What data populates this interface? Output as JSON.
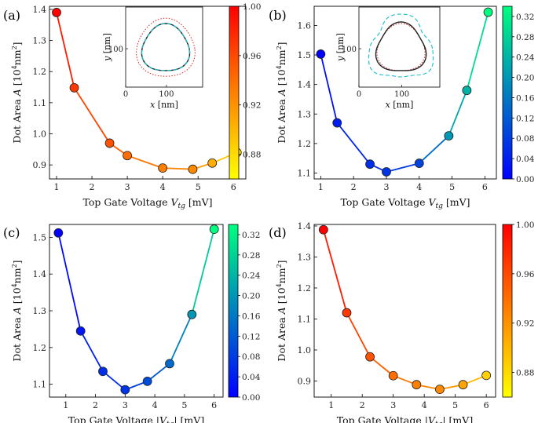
{
  "chart_data": [
    {
      "type": "line",
      "panel": "(a)",
      "xlabel": "Top Gate Voltage V_tg [mV]",
      "xlabel_parts": {
        "pre": "Top Gate Voltage ",
        "var": "V",
        "sub": "tg",
        "post": " [mV]"
      },
      "ylabel": "Dot Area A [10^4 nm^2]",
      "xlim": [
        0.8,
        6.35
      ],
      "ylim": [
        0.855,
        1.41
      ],
      "xticks": [
        1,
        2,
        3,
        4,
        5,
        6
      ],
      "yticks": [
        0.9,
        1.0,
        1.1,
        1.2,
        1.3,
        1.4
      ],
      "x": [
        1.0,
        1.5,
        2.5,
        3.0,
        4.0,
        4.85,
        5.4,
        6.1
      ],
      "y": [
        1.39,
        1.148,
        0.97,
        0.93,
        0.89,
        0.886,
        0.906,
        0.94
      ],
      "color_values": [
        1.0,
        0.97,
        0.955,
        0.94,
        0.93,
        0.925,
        0.905,
        0.875
      ],
      "colormap": "autumn",
      "colorbar": {
        "min": 0.86,
        "max": 1.0,
        "ticks": [
          0.88,
          0.92,
          0.96,
          1.0
        ],
        "labels": [
          "0.88",
          "0.92",
          "0.96",
          "1.00"
        ]
      },
      "inset": {
        "xlabel": "x [nm]",
        "ylabel": "y [nm]",
        "xticks": [
          0,
          100
        ],
        "yticks": [
          100
        ],
        "curves": [
          "black solid",
          "teal dashed",
          "red dotted"
        ]
      }
    },
    {
      "type": "line",
      "panel": "(b)",
      "xlabel": "Top Gate Voltage V_tg [mV]",
      "xlabel_parts": {
        "pre": "Top Gate Voltage ",
        "var": "V",
        "sub": "tg",
        "post": " [mV]"
      },
      "ylabel": "Dot Area A [10^4 nm^2]",
      "xlim": [
        0.8,
        6.35
      ],
      "ylim": [
        1.08,
        1.665
      ],
      "xticks": [
        1,
        2,
        3,
        4,
        5,
        6
      ],
      "yticks": [
        1.1,
        1.2,
        1.3,
        1.4,
        1.5,
        1.6
      ],
      "x": [
        1.0,
        1.5,
        2.5,
        3.0,
        4.0,
        4.9,
        5.45,
        6.1
      ],
      "y": [
        1.503,
        1.27,
        1.13,
        1.104,
        1.133,
        1.226,
        1.38,
        1.645
      ],
      "color_values": [
        0.0,
        0.04,
        0.06,
        0.07,
        0.09,
        0.2,
        0.24,
        0.34
      ],
      "colormap": "winter",
      "colorbar": {
        "min": 0.0,
        "max": 0.34,
        "ticks": [
          0.0,
          0.04,
          0.08,
          0.12,
          0.16,
          0.2,
          0.24,
          0.28,
          0.32
        ],
        "labels": [
          "0.00",
          "0.04",
          "0.08",
          "0.12",
          "0.16",
          "0.20",
          "0.24",
          "0.28",
          "0.32"
        ]
      },
      "inset": {
        "xlabel": "x [nm]",
        "ylabel": "y [nm]",
        "xticks": [
          0,
          100
        ],
        "yticks": [
          100
        ],
        "curves": [
          "black solid",
          "teal dashed",
          "red dotted"
        ]
      }
    },
    {
      "type": "line",
      "panel": "(c)",
      "xlabel": "Top Gate Voltage |V_tg| [mV]",
      "xlabel_parts": {
        "pre": "Top Gate Voltage |",
        "var": "V",
        "sub": "tg",
        "post": "| [mV]"
      },
      "ylabel": "Dot Area A [10^4 nm^2]",
      "xlim": [
        0.45,
        6.3
      ],
      "ylim": [
        1.065,
        1.535
      ],
      "xticks": [
        1,
        2,
        3,
        4,
        5,
        6
      ],
      "yticks": [
        1.1,
        1.2,
        1.3,
        1.4,
        1.5
      ],
      "x": [
        0.75,
        1.5,
        2.25,
        3.0,
        3.75,
        4.5,
        5.25,
        6.0
      ],
      "y": [
        1.512,
        1.245,
        1.135,
        1.085,
        1.108,
        1.156,
        1.29,
        1.522
      ],
      "color_values": [
        0.0,
        0.03,
        0.06,
        0.07,
        0.1,
        0.14,
        0.2,
        0.34
      ],
      "colormap": "winter",
      "colorbar": {
        "min": 0.0,
        "max": 0.34,
        "ticks": [
          0.0,
          0.04,
          0.08,
          0.12,
          0.16,
          0.2,
          0.24,
          0.28,
          0.32
        ],
        "labels": [
          "0.00",
          "0.04",
          "0.08",
          "0.12",
          "0.16",
          "0.20",
          "0.24",
          "0.28",
          "0.32"
        ]
      }
    },
    {
      "type": "line",
      "panel": "(d)",
      "xlabel": "Top Gate Voltage |V_tg| [mV]",
      "xlabel_parts": {
        "pre": "Top Gate Voltage |",
        "var": "V",
        "sub": "tg",
        "post": "| [mV]"
      },
      "ylabel": "Dot Area A [10^4 nm^2]",
      "xlim": [
        0.45,
        6.3
      ],
      "ylim": [
        0.848,
        1.405
      ],
      "xticks": [
        1,
        2,
        3,
        4,
        5,
        6
      ],
      "yticks": [
        0.9,
        1.0,
        1.1,
        1.2,
        1.3,
        1.4
      ],
      "x": [
        0.75,
        1.5,
        2.25,
        3.0,
        3.75,
        4.5,
        5.25,
        6.0
      ],
      "y": [
        1.388,
        1.12,
        0.978,
        0.917,
        0.888,
        0.873,
        0.888,
        0.918
      ],
      "color_values": [
        1.0,
        0.97,
        0.955,
        0.94,
        0.93,
        0.925,
        0.91,
        0.885
      ],
      "colormap": "autumn",
      "colorbar": {
        "min": 0.86,
        "max": 1.0,
        "ticks": [
          0.88,
          0.92,
          0.96,
          1.0
        ],
        "labels": [
          "0.88",
          "0.92",
          "0.96",
          "1.00"
        ]
      }
    }
  ]
}
